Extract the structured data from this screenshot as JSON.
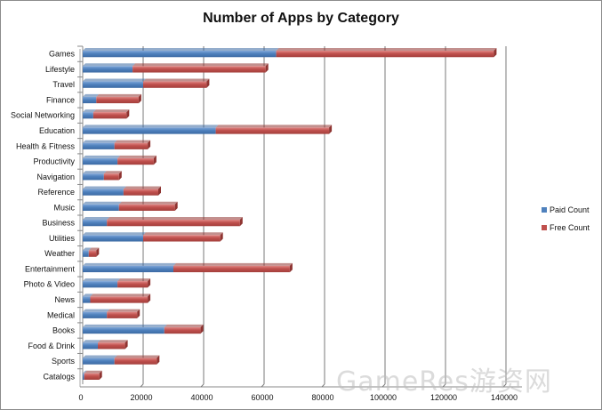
{
  "chart_data": {
    "type": "bar",
    "orientation": "horizontal",
    "stacked": true,
    "title": "Number of Apps by Category",
    "categories": [
      "Games",
      "Lifestyle",
      "Travel",
      "Finance",
      "Social Networking",
      "Education",
      "Health & Fitness",
      "Productivity",
      "Navigation",
      "Reference",
      "Music",
      "Business",
      "Utilities",
      "Weather",
      "Entertainment",
      "Photo & Video",
      "News",
      "Medical",
      "Books",
      "Food & Drink",
      "Sports",
      "Catalogs"
    ],
    "series": [
      {
        "name": "Paid Count",
        "color": "#4f81bd",
        "values": [
          64000,
          16500,
          20000,
          4500,
          3500,
          44000,
          10500,
          11500,
          7000,
          13500,
          12000,
          8000,
          20000,
          2000,
          30000,
          11500,
          2500,
          8000,
          27000,
          5000,
          10500,
          500
        ]
      },
      {
        "name": "Free Count",
        "color": "#c0504d",
        "values": [
          72000,
          44000,
          21000,
          14000,
          11000,
          37500,
          11000,
          12000,
          5000,
          11500,
          18500,
          44000,
          25500,
          2500,
          38500,
          10000,
          19000,
          10000,
          12000,
          9000,
          14000,
          5000
        ]
      }
    ],
    "xlim": [
      0,
      160000
    ],
    "xticks": [
      0,
      20000,
      40000,
      60000,
      80000,
      100000,
      120000,
      140000
    ],
    "xtick_labels": [
      "0",
      "20000",
      "40000",
      "60000",
      "80000",
      "100000",
      "120000",
      "140000"
    ],
    "grid": true,
    "legend_position": "right"
  },
  "watermark": "GameRes游资网"
}
